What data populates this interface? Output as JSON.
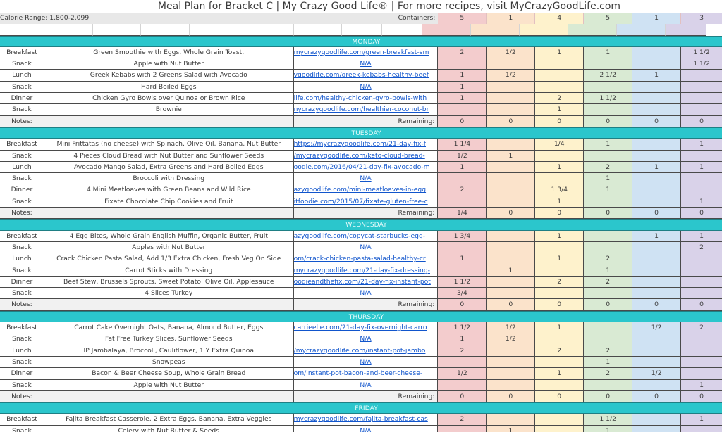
{
  "title": "Meal Plan for Bracket C | My Crazy Good Life® | For more recipes, visit MyCrazyGoodLife.com",
  "calorie_range": "Calorie Range: 1,800-2,099",
  "containers_label": "Containers:",
  "notes_label": "Notes:",
  "remaining_label": "Remaining:",
  "container_colors": [
    "#f3cccd",
    "#fbe3cb",
    "#fef2cc",
    "#d9ead3",
    "#cfe2f3",
    "#d9d2e9"
  ],
  "containers": [
    "5",
    "1",
    "4",
    "5",
    "1",
    "3"
  ],
  "days": [
    {
      "name": "MONDAY",
      "meals": [
        {
          "type": "Breakfast",
          "meal": "Green Smoothie with Eggs, Whole Grain Toast,",
          "link": "mycrazygoodlife.com/green-breakfast-sm",
          "values": [
            "2",
            "1/2",
            "1",
            "1",
            "",
            "1 1/2"
          ]
        },
        {
          "type": "Snack",
          "meal": "Apple with Nut Butter",
          "link": "N/A",
          "values": [
            "",
            "",
            "",
            "",
            "",
            "1 1/2"
          ]
        },
        {
          "type": "Lunch",
          "meal": "Greek Kebabs with 2 Greens Salad with Avocado",
          "link": "ygoodlife.com/greek-kebabs-healthy-beef",
          "values": [
            "1",
            "1/2",
            "",
            "2 1/2",
            "1",
            ""
          ]
        },
        {
          "type": "Snack",
          "meal": "Hard Boiled Eggs",
          "link": "N/A",
          "values": [
            "1",
            "",
            "",
            "",
            "",
            ""
          ]
        },
        {
          "type": "Dinner",
          "meal": "Chicken Gyro Bowls over Quinoa or Brown Rice",
          "link": "life.com/healthy-chicken-gyro-bowls-with",
          "values": [
            "1",
            "",
            "2",
            "1 1/2",
            "",
            ""
          ]
        },
        {
          "type": "Snack",
          "meal": "Brownie",
          "link": "nycrazygoodlife.com/healthier-coconut-br",
          "values": [
            "",
            "",
            "1",
            "",
            "",
            ""
          ]
        }
      ],
      "remaining": [
        "0",
        "0",
        "0",
        "0",
        "0",
        "0"
      ]
    },
    {
      "name": "TUESDAY",
      "meals": [
        {
          "type": "Breakfast",
          "meal": "Mini Frittatas (no cheese) with Spinach, Olive Oil, Banana, Nut Butter",
          "link": "https://mycrazygoodlife.com/21-day-fix-f",
          "values": [
            "1 1/4",
            "",
            "1/4",
            "1",
            "",
            "1"
          ]
        },
        {
          "type": "Snack",
          "meal": "4 Pieces Cloud Bread with Nut Butter and Sunflower Seeds",
          "link": "/mycrazygoodlife.com/keto-cloud-bread-",
          "values": [
            "1/2",
            "1",
            "",
            "",
            "",
            ""
          ]
        },
        {
          "type": "Lunch",
          "meal": "Avocado Mango Salad, Extra Greens and Hard Boiled Eggs",
          "link": "oodie.com/2016/04/21-day-fix-avocado-m",
          "values": [
            "1",
            "",
            "1",
            "2",
            "1",
            "1"
          ]
        },
        {
          "type": "Snack",
          "meal": "Broccoli with Dressing",
          "link": "N/A",
          "values": [
            "",
            "",
            "",
            "1",
            "",
            ""
          ]
        },
        {
          "type": "Dinner",
          "meal": "4 Mini Meatloaves with Green Beans and Wild Rice",
          "link": "azygoodlife.com/mini-meatloaves-in-egg",
          "values": [
            "2",
            "",
            "1 3/4",
            "1",
            "",
            ""
          ]
        },
        {
          "type": "Snack",
          "meal": "Fixate Chocolate Chip Cookies and Fruit",
          "link": "itfoodie.com/2015/07/fixate-gluten-free-c",
          "values": [
            "",
            "",
            "1",
            "",
            "",
            "1"
          ]
        }
      ],
      "remaining": [
        "1/4",
        "0",
        "0",
        "0",
        "0",
        "0"
      ]
    },
    {
      "name": "WEDNESDAY",
      "meals": [
        {
          "type": "Breakfast",
          "meal": "4 Egg Bites, Whole Grain English Muffin, Organic Butter, Fruit",
          "link": "azygoodlife.com/copycat-starbucks-egg-",
          "values": [
            "1 3/4",
            "",
            "1",
            "",
            "1",
            "1"
          ]
        },
        {
          "type": "Snack",
          "meal": "Apples with Nut Butter",
          "link": "N/A",
          "values": [
            "",
            "",
            "",
            "",
            "",
            "2"
          ]
        },
        {
          "type": "Lunch",
          "meal": "Crack Chicken Pasta Salad, Add 1/3 Extra Chicken, Fresh Veg On Side",
          "link": "om/crack-chicken-pasta-salad-healthy-cr",
          "values": [
            "1",
            "",
            "1",
            "2",
            "",
            ""
          ]
        },
        {
          "type": "Snack",
          "meal": "Carrot Sticks with Dressing",
          "link": "mycrazygoodlife.com/21-day-fix-dressing-",
          "values": [
            "",
            "1",
            "",
            "1",
            "",
            ""
          ]
        },
        {
          "type": "Dinner",
          "meal": "Beef Stew, Brussels Sprouts, Sweet Potato, Olive Oil, Applesauce",
          "link": "oodieandthefix.com/21-day-fix-instant-pot",
          "values": [
            "1 1/2",
            "",
            "2",
            "2",
            "",
            ""
          ]
        },
        {
          "type": "Snack",
          "meal": "4 Slices Turkey",
          "link": "N/A",
          "values": [
            "3/4",
            "",
            "",
            "",
            "",
            ""
          ]
        }
      ],
      "remaining": [
        "0",
        "0",
        "0",
        "0",
        "0",
        "0"
      ]
    },
    {
      "name": "THURSDAY",
      "meals": [
        {
          "type": "Breakfast",
          "meal": "Carrot Cake Overnight Oats, Banana, Almond Butter, Eggs",
          "link": "carrieelle.com/21-day-fix-overnight-carro",
          "values": [
            "1 1/2",
            "1/2",
            "1",
            "",
            "1/2",
            "2"
          ]
        },
        {
          "type": "Snack",
          "meal": "Fat Free Turkey Slices, Sunflower Seeds",
          "link": "N/A",
          "values": [
            "1",
            "1/2",
            "",
            "",
            "",
            ""
          ]
        },
        {
          "type": "Lunch",
          "meal": "IP Jambalaya, Broccoli, Cauliflower, 1 Y Extra Quinoa",
          "link": "/mycrazygoodlife.com/instant-pot-jambo",
          "values": [
            "2",
            "",
            "2",
            "2",
            "",
            ""
          ]
        },
        {
          "type": "Snack",
          "meal": "Snowpeas",
          "link": "N/A",
          "values": [
            "",
            "",
            "",
            "1",
            "",
            ""
          ]
        },
        {
          "type": "Dinner",
          "meal": "Bacon & Beer Cheese Soup, Whole Grain Bread",
          "link": "om/instant-pot-bacon-and-beer-cheese-",
          "values": [
            "1/2",
            "",
            "1",
            "2",
            "1/2",
            ""
          ]
        },
        {
          "type": "Snack",
          "meal": "Apple with Nut Butter",
          "link": "N/A",
          "values": [
            "",
            "",
            "",
            "",
            "",
            "1"
          ]
        }
      ],
      "remaining": [
        "0",
        "0",
        "0",
        "0",
        "0",
        "0"
      ]
    },
    {
      "name": "FRIDAY",
      "meals": [
        {
          "type": "Breakfast",
          "meal": "Fajita Breakfast Casserole, 2 Extra Eggs, Banana, Extra Veggies",
          "link": "mycrazygoodlife.com/fajita-breakfast-cas",
          "values": [
            "2",
            "",
            "",
            "1 1/2",
            "",
            "1"
          ]
        },
        {
          "type": "Snack",
          "meal": "Celery with Nut Butter & Seeds",
          "link": "N/A",
          "values": [
            "",
            "1",
            "",
            "1",
            "",
            ""
          ]
        }
      ]
    }
  ]
}
